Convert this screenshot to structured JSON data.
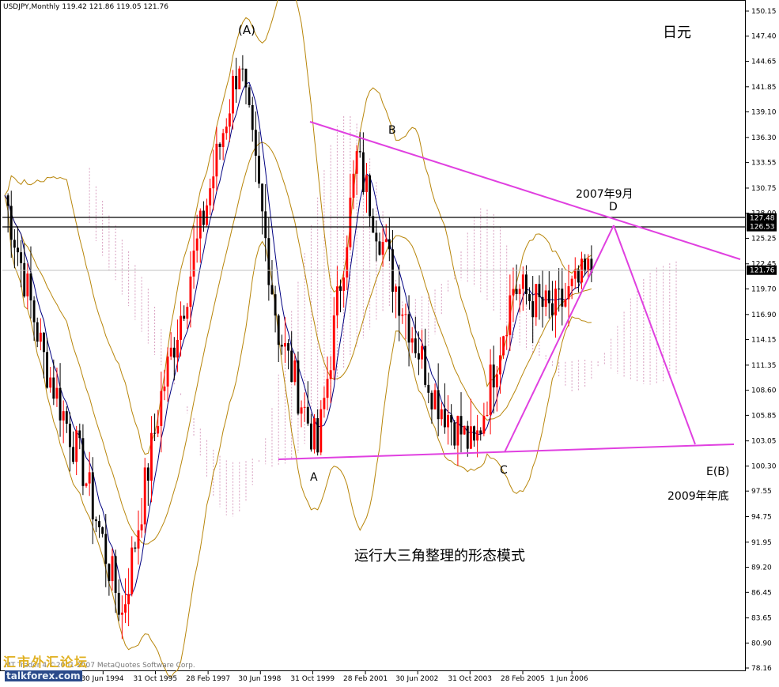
{
  "header": {
    "title": "USDJPY,Monthly  119.42 121.86 119.05 121.76"
  },
  "labels": {
    "currency": "日元",
    "peak_A": "(A)",
    "point_B": "B",
    "point_A": "A",
    "point_C": "C",
    "point_D": "D",
    "point_E": "E(B)",
    "date_D": "2007年9月",
    "date_E": "2009年年底",
    "pattern": "运行大三角整理的形态模式"
  },
  "footer": {
    "copyright": "MT Trader 4 ©2001-2007 MetaQuotes Software Corp.",
    "watermark_cn": "汇市外汇论坛",
    "watermark_en": "talkforex.com"
  },
  "colors": {
    "bull": "#ff0000",
    "bear": "#000000",
    "trendline": "#e040e0",
    "bollinger": "#b8860b",
    "cloud": "#d8a0c0",
    "ma": "#000080"
  },
  "chart_data": {
    "type": "line",
    "timeframe": "Monthly",
    "symbol": "USDJPY",
    "ylim": [
      78.16,
      150.15
    ],
    "ticks_y": [
      "150.15",
      "147.40",
      "144.65",
      "141.85",
      "139.10",
      "136.30",
      "133.55",
      "130.75",
      "128.00",
      "125.25",
      "122.45",
      "119.70",
      "116.90",
      "114.15",
      "111.35",
      "108.60",
      "105.85",
      "103.05",
      "100.30",
      "97.55",
      "94.75",
      "91.95",
      "89.20",
      "86.45",
      "83.65",
      "80.90",
      "78.16"
    ],
    "ticks_x": [
      "30 Jun 1994",
      "31 Oct 1995",
      "28 Feb 1997",
      "30 Jun 1998",
      "31 Oct 1999",
      "28 Feb 2001",
      "30 Jun 2002",
      "31 Oct 2003",
      "28 Feb 2005",
      "1 Jun 2006"
    ],
    "horizontal_levels": [
      127.48,
      126.53
    ],
    "last_price": 121.76,
    "price_path": [
      [
        "1992",
        130
      ],
      [
        "1993",
        112
      ],
      [
        "1994",
        100
      ],
      [
        "1995",
        84
      ],
      [
        "1996",
        108
      ],
      [
        "1997",
        126
      ],
      [
        "1998",
        145
      ],
      [
        "1999",
        115
      ],
      [
        "2000",
        102
      ],
      [
        "2001",
        134
      ],
      [
        "2002",
        120
      ],
      [
        "2003",
        108
      ],
      [
        "2004",
        102
      ],
      [
        "2005",
        120
      ],
      [
        "2006",
        117
      ],
      [
        "2007",
        121.76
      ]
    ],
    "trendlines": [
      {
        "name": "upper",
        "from": [
          "2001",
          138.5
        ],
        "to": [
          "2008",
          122.5
        ]
      },
      {
        "name": "lower",
        "from": [
          "1999",
          100.8
        ],
        "to": [
          "2008",
          102.3
        ]
      },
      {
        "name": "C-D",
        "from": [
          "2004",
          101.8
        ],
        "to": [
          "2007",
          126.8
        ]
      },
      {
        "name": "D-E",
        "from": [
          "2007",
          126.8
        ],
        "to": [
          "2009",
          102.5
        ]
      }
    ]
  }
}
